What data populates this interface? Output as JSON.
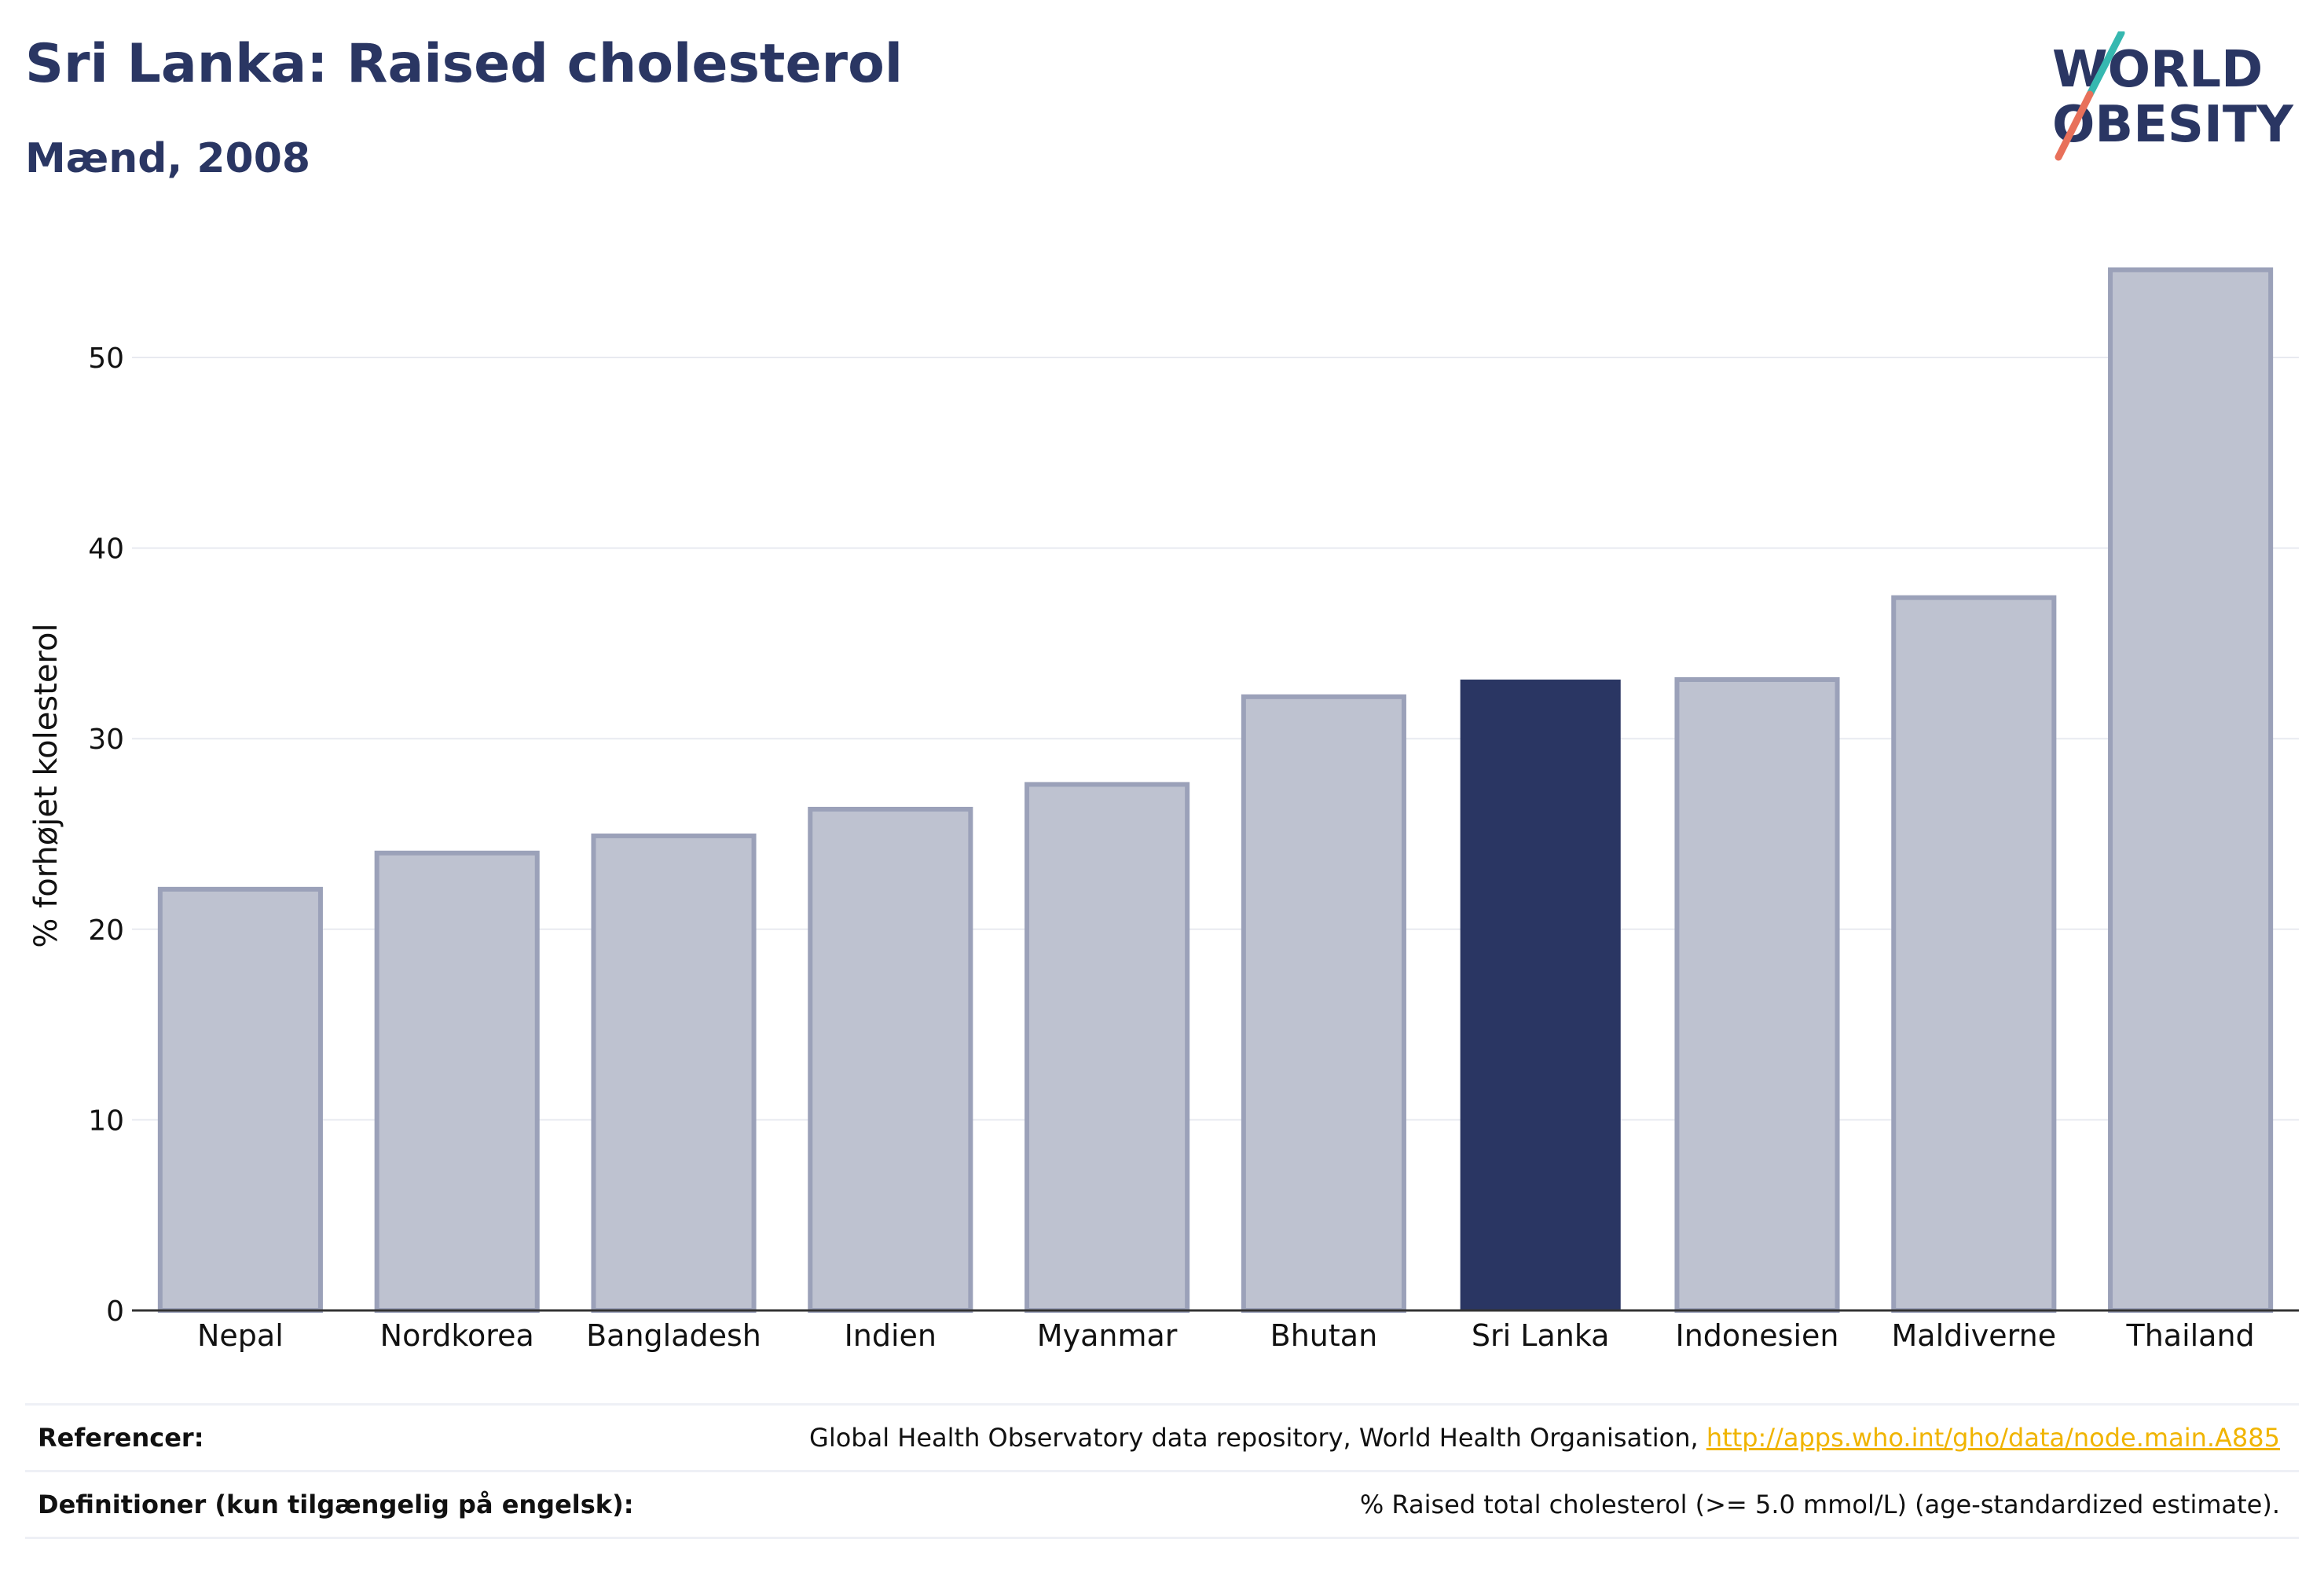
{
  "header": {
    "title": "Sri Lanka: Raised cholesterol",
    "subtitle": "Mænd, 2008"
  },
  "logo": {
    "line1": "WORLD",
    "line2": "OBESITY",
    "colors": {
      "text": "#2a3663",
      "slash_top": "#36b8b0",
      "slash_bottom": "#e8705a"
    }
  },
  "chart_data": {
    "type": "bar",
    "categories": [
      "Nepal",
      "Nordkorea",
      "Bangladesh",
      "Indien",
      "Myanmar",
      "Bhutan",
      "Sri Lanka",
      "Indonesien",
      "Maldiverne",
      "Thailand"
    ],
    "values": [
      22.1,
      24.0,
      24.9,
      26.3,
      27.6,
      32.2,
      33.1,
      33.1,
      37.4,
      54.6
    ],
    "highlight": "Sri Lanka",
    "title": "",
    "xlabel": "",
    "ylabel": "% forhøjet kolesterol",
    "ylim": [
      0,
      57
    ],
    "yticks": [
      0,
      10,
      20,
      30,
      40,
      50
    ],
    "grid": true,
    "colors": {
      "bar": "#bec2d0",
      "bar_border": "#9ba1b9",
      "highlight": "#2a3663",
      "grid": "#e8eaf0",
      "axis": "#333333"
    }
  },
  "footer": {
    "references_label": "Referencer:",
    "references_text": "Global Health Observatory data repository, World Health Organisation, ",
    "references_link": "http://apps.who.int/gho/data/node.main.A885",
    "definitions_label": "Definitioner (kun tilgængelig på engelsk):",
    "definitions_text": "% Raised total cholesterol (>= 5.0 mmol/L) (age-standardized estimate)."
  }
}
